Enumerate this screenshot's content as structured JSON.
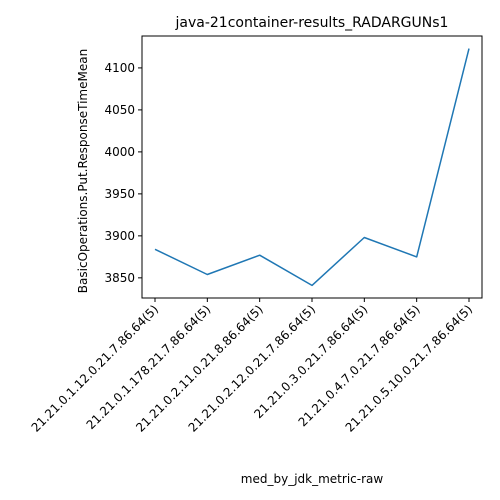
{
  "chart_data": {
    "type": "line",
    "title": "java-21container-results_RADARGUNs1",
    "xlabel": "med_by_jdk_metric-raw",
    "ylabel": "BasicOperations.Put.ResponseTimeMean",
    "categories": [
      "21.21.0.1.12.0.21.7.86.64(5)",
      "21.21.0.1.178.21.7.86.64(5)",
      "21.21.0.2.11.0.21.8.86.64(5)",
      "21.21.0.2.12.0.21.7.86.64(5)",
      "21.21.0.3.0.21.7.86.64(5)",
      "21.21.0.4.7.0.21.7.86.64(5)",
      "21.21.0.5.10.0.21.7.86.64(5)"
    ],
    "series": [
      {
        "values": [
          3884,
          3854,
          3877,
          3841,
          3898,
          3875,
          4123
        ],
        "color": "#1f77b4"
      }
    ],
    "ylim": [
      3826,
      4138
    ],
    "yticks": [
      3850,
      3900,
      3950,
      4000,
      4050,
      4100
    ],
    "grid": false,
    "legend": "none"
  }
}
